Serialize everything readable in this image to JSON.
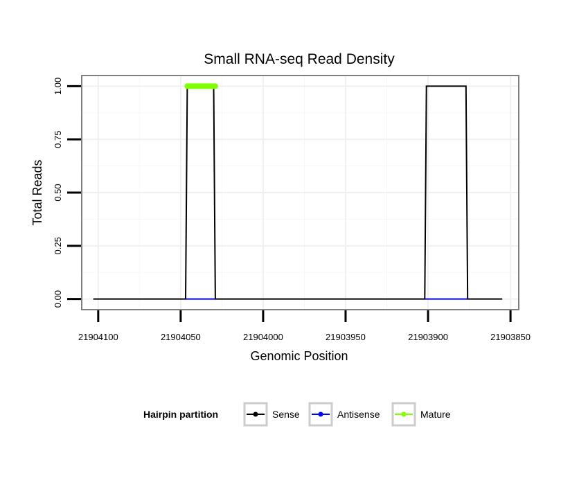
{
  "chart_data": {
    "type": "line",
    "title": "Small RNA-seq Read Density",
    "xlabel": "Genomic Position",
    "ylabel": "Total Reads",
    "x_reversed": true,
    "xlim": [
      21904110,
      21903845
    ],
    "ylim": [
      -0.05,
      1.05
    ],
    "x_ticks": [
      21904100,
      21904050,
      21904000,
      21903950,
      21903900,
      21903850
    ],
    "x_tick_labels": [
      "21904100",
      "21904050",
      "21904000",
      "21903950",
      "21903900",
      "21903850"
    ],
    "y_ticks": [
      0,
      0.25,
      0.5,
      0.75,
      1
    ],
    "y_tick_labels": [
      "0.00",
      "0.25",
      "0.50",
      "0.75",
      "1.00"
    ],
    "grid": true,
    "legend": {
      "title": "Hairpin partition",
      "position": "bottom",
      "entries": [
        {
          "label": "Sense",
          "color": "#000000"
        },
        {
          "label": "Antisense",
          "color": "#0000ff"
        },
        {
          "label": "Mature",
          "color": "#7fff00"
        }
      ]
    },
    "series": [
      {
        "name": "Sense",
        "color": "#000000",
        "x": [
          21904103,
          21904047,
          21904046,
          21904030,
          21904029,
          21903902,
          21903901,
          21903877,
          21903876,
          21903855
        ],
        "y": [
          0,
          0,
          1,
          1,
          0,
          0,
          1,
          1,
          0,
          0
        ]
      },
      {
        "name": "Antisense",
        "color": "#0000ff",
        "x": [
          21904047,
          21904029
        ],
        "y": [
          0,
          0
        ]
      },
      {
        "name": "Antisense",
        "color": "#0000ff",
        "x": [
          21903902,
          21903876
        ],
        "y": [
          0,
          0
        ]
      },
      {
        "name": "Mature",
        "color": "#7fff00",
        "x": [
          21904046,
          21904029
        ],
        "y": [
          1,
          1
        ]
      }
    ]
  }
}
